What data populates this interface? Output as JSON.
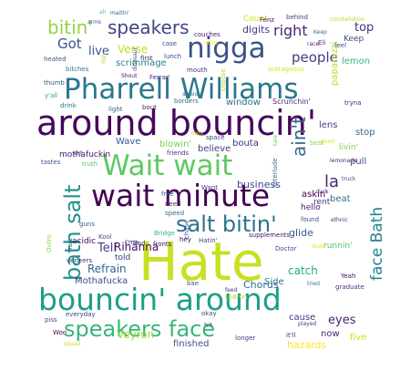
{
  "words": [
    {
      "text": "Hate",
      "color": "#c8e020"
    },
    {
      "text": "around bouncin'",
      "color": "#46085c"
    },
    {
      "text": "bouncin' around",
      "color": "#1f9e89"
    },
    {
      "text": "wait minute",
      "color": "#440154"
    },
    {
      "text": "Wait wait",
      "color": "#5ec962"
    },
    {
      "text": "Pharrell Williams",
      "color": "#2a788e"
    },
    {
      "text": "nigga",
      "color": "#3b528b"
    },
    {
      "text": "salt bitin'",
      "color": "#2c718e"
    },
    {
      "text": "speakers face",
      "color": "#35b779"
    },
    {
      "text": "bath salt",
      "color": "#21918c"
    },
    {
      "text": "face Bath",
      "color": "#26828e"
    },
    {
      "text": "bitin'",
      "color": "#8fd744"
    },
    {
      "text": "speakers",
      "color": "#414487"
    },
    {
      "text": "ain't",
      "color": "#31688e"
    },
    {
      "text": "right",
      "color": "#482878"
    },
    {
      "text": "people",
      "color": "#443a83"
    },
    {
      "text": "Got",
      "color": "#3b528b"
    },
    {
      "text": "live",
      "color": "#38588c"
    },
    {
      "text": "Verse",
      "color": "#bddf26"
    },
    {
      "text": "top",
      "color": "#472d7b"
    },
    {
      "text": "la",
      "color": "#482475"
    },
    {
      "text": "digits",
      "color": "#453781"
    },
    {
      "text": "business",
      "color": "#3e4989"
    },
    {
      "text": "Tell",
      "color": "#433e85"
    },
    {
      "text": "catch",
      "color": "#22a884"
    },
    {
      "text": "Refrain",
      "color": "#33638d"
    },
    {
      "text": "Rihanna",
      "color": "#471063"
    },
    {
      "text": "Chorus",
      "color": "#2f6c8e"
    },
    {
      "text": "eyes",
      "color": "#481f70"
    },
    {
      "text": "Veyron",
      "color": "#9fda3a"
    },
    {
      "text": "finished",
      "color": "#3b528b"
    },
    {
      "text": "now",
      "color": "#482878"
    },
    {
      "text": "five",
      "color": "#d0e11c"
    },
    {
      "text": "hazards",
      "color": "#fde725"
    },
    {
      "text": "cause",
      "color": "#443a83"
    },
    {
      "text": "paparazzi",
      "color": "#b5de2b"
    },
    {
      "text": "lemon",
      "color": "#35b779"
    },
    {
      "text": "Keep",
      "color": "#3e4989"
    },
    {
      "text": "lens",
      "color": "#414487"
    },
    {
      "text": "askin'",
      "color": "#440154"
    },
    {
      "text": "beat",
      "color": "#2d708e"
    },
    {
      "text": "pull",
      "color": "#3f4788"
    },
    {
      "text": "stop",
      "color": "#32658e"
    },
    {
      "text": "livin'",
      "color": "#84d44b"
    },
    {
      "text": "rent",
      "color": "#46337f"
    },
    {
      "text": "glide",
      "color": "#3a548c"
    },
    {
      "text": "hello",
      "color": "#48186a"
    },
    {
      "text": "runnin'",
      "color": "#4ac16d"
    },
    {
      "text": "blowin'",
      "color": "#7ad151"
    },
    {
      "text": "believe",
      "color": "#433e85"
    },
    {
      "text": "bouta",
      "color": "#472f7d"
    },
    {
      "text": "Wave",
      "color": "#39568c"
    },
    {
      "text": "mothafuckin",
      "color": "#481467"
    },
    {
      "text": "acidic",
      "color": "#46075a"
    },
    {
      "text": "window",
      "color": "#2e6e8e"
    },
    {
      "text": "scrimmage",
      "color": "#26828e"
    },
    {
      "text": "Mothafucka",
      "color": "#3e4a89"
    },
    {
      "text": "told",
      "color": "#443983"
    },
    {
      "text": "Side",
      "color": "#2b748e"
    },
    {
      "text": "Count",
      "color": "#d2e21b"
    },
    {
      "text": "Fenz",
      "color": "#46085c"
    },
    {
      "text": "behind",
      "color": "#453882"
    },
    {
      "text": "ah",
      "color": "#5ec962"
    },
    {
      "text": "maitin'",
      "color": "#3b528b"
    },
    {
      "text": "couches",
      "color": "#481a6c"
    },
    {
      "text": "case",
      "color": "#3d4d8a"
    },
    {
      "text": "intro",
      "color": "#fde725"
    },
    {
      "text": "Eli",
      "color": "#46327e"
    },
    {
      "text": "feel",
      "color": "#3f4889"
    },
    {
      "text": "race",
      "color": "#482173"
    },
    {
      "text": "constellation",
      "color": "#b8de29"
    },
    {
      "text": "Keep",
      "color": "#2c728e"
    },
    {
      "text": "first",
      "color": "#48196b"
    },
    {
      "text": "lunch",
      "color": "#414287"
    },
    {
      "text": "heated",
      "color": "#3d4e8a"
    },
    {
      "text": "bitches",
      "color": "#27808e"
    },
    {
      "text": "mouth",
      "color": "#46337e"
    },
    {
      "text": "Ferrar'",
      "color": "#482173"
    },
    {
      "text": "Shout",
      "color": "#470e61"
    },
    {
      "text": "thumb",
      "color": "#38588c"
    },
    {
      "text": "outrageous",
      "color": "#d8e219"
    },
    {
      "text": "y'all",
      "color": "#26ad81"
    },
    {
      "text": "drink",
      "color": "#2a768e"
    },
    {
      "text": "light",
      "color": "#375a8c"
    },
    {
      "text": "bout",
      "color": "#48186a"
    },
    {
      "text": "borders",
      "color": "#2e6f8e"
    },
    {
      "text": "Scrunchin'",
      "color": "#482677"
    },
    {
      "text": "tryna",
      "color": "#472a7a"
    },
    {
      "text": "afraid",
      "color": "#2d718e"
    },
    {
      "text": "choose",
      "color": "#a0da39"
    },
    {
      "text": "Fish",
      "color": "#a5db36"
    },
    {
      "text": "dam",
      "color": "#bddf26"
    },
    {
      "text": "space",
      "color": "#3f4788"
    },
    {
      "text": "friends",
      "color": "#453882"
    },
    {
      "text": "set",
      "color": "#3a538b"
    },
    {
      "text": "tastes",
      "color": "#3b518b"
    },
    {
      "text": "truth",
      "color": "#5cc863"
    },
    {
      "text": "best",
      "color": "#7fd34e"
    },
    {
      "text": "lemonade",
      "color": "#482576"
    },
    {
      "text": "truck",
      "color": "#3b528b"
    },
    {
      "text": "dark",
      "color": "#433d84"
    },
    {
      "text": "good",
      "color": "#e5e419"
    },
    {
      "text": "Interlude",
      "color": "#2e6d8e"
    },
    {
      "text": "tare",
      "color": "#6ece58"
    },
    {
      "text": "Want",
      "color": "#443a83"
    },
    {
      "text": "chase",
      "color": "#3a548c"
    },
    {
      "text": "found",
      "color": "#3e4989"
    },
    {
      "text": "ethnic",
      "color": "#46307e"
    },
    {
      "text": "free",
      "color": "#39568c"
    },
    {
      "text": "need",
      "color": "#482374"
    },
    {
      "text": "speed",
      "color": "#2f6b8e"
    },
    {
      "text": "fronts",
      "color": "#46085c"
    },
    {
      "text": "Bad",
      "color": "#404588"
    },
    {
      "text": "guns",
      "color": "#365c8d"
    },
    {
      "text": "Kool",
      "color": "#3d4e8a"
    },
    {
      "text": "Bridge",
      "color": "#37b878"
    },
    {
      "text": "Outro",
      "color": "#8bd646"
    },
    {
      "text": "Hunt",
      "color": "#3a538b"
    },
    {
      "text": "veneers",
      "color": "#482878"
    },
    {
      "text": "hey",
      "color": "#440154"
    },
    {
      "text": "Hatin'",
      "color": "#3e4a89"
    },
    {
      "text": "supplements",
      "color": "#471365"
    },
    {
      "text": "dude",
      "color": "#e2e418"
    },
    {
      "text": "Doctor",
      "color": "#3c4f8a"
    },
    {
      "text": "tried",
      "color": "#2d708e"
    },
    {
      "text": "Yeah",
      "color": "#460a5d"
    },
    {
      "text": "graduate",
      "color": "#46327e"
    },
    {
      "text": "bae",
      "color": "#3b528b"
    },
    {
      "text": "LeBron",
      "color": "#b2dd2d"
    },
    {
      "text": "feed",
      "color": "#472c7a"
    },
    {
      "text": "everyday",
      "color": "#404387"
    },
    {
      "text": "played",
      "color": "#453581"
    },
    {
      "text": "okay",
      "color": "#3e4a89"
    },
    {
      "text": "hit",
      "color": "#3c4f8a"
    },
    {
      "text": "longer",
      "color": "#443983"
    },
    {
      "text": "it'll",
      "color": "#472e7c"
    },
    {
      "text": "piss",
      "color": "#3f4889"
    },
    {
      "text": "Woo",
      "color": "#440154"
    },
    {
      "text": "squad",
      "color": "#c0df25"
    },
    {
      "text": "I'ma",
      "color": "#481769"
    },
    {
      "text": "arms",
      "color": "#3a548c"
    },
    {
      "text": "dinosaur",
      "color": "#3e4989"
    }
  ]
}
